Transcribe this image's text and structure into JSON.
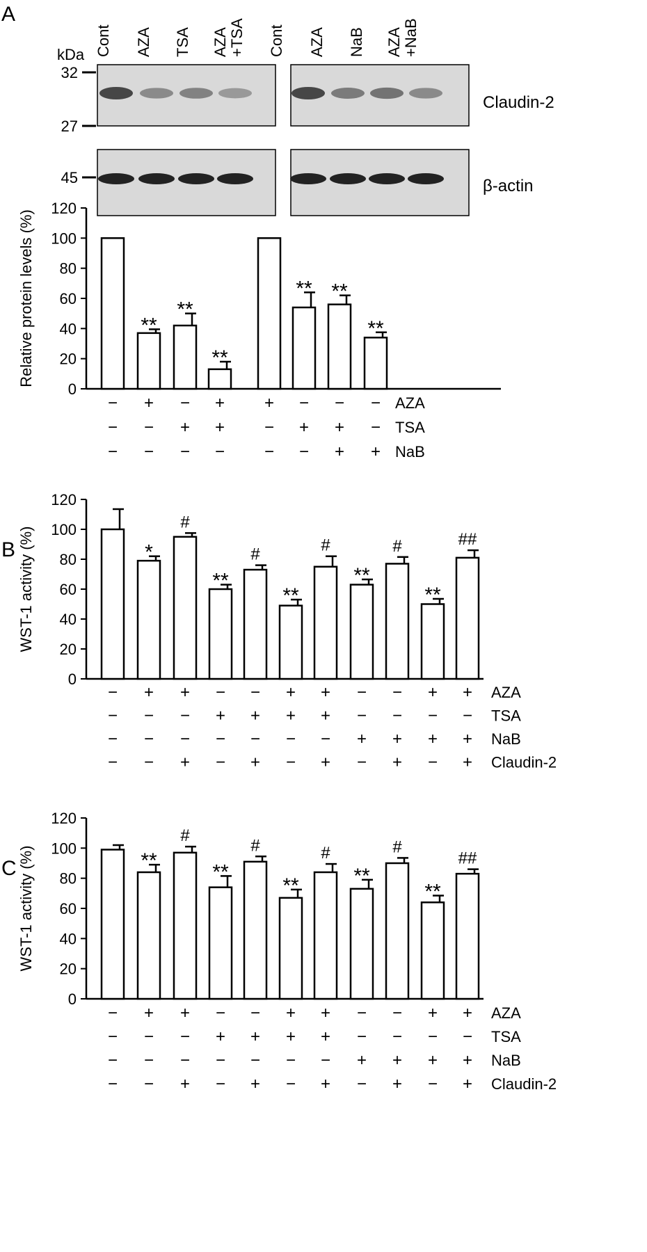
{
  "figure": {
    "panel_labels": [
      "A",
      "B",
      "C"
    ]
  },
  "blot": {
    "kda_label": "kDa",
    "lanes": [
      [
        "Cont"
      ],
      [
        "AZA"
      ],
      [
        "TSA"
      ],
      [
        "AZA",
        "+TSA"
      ],
      [
        "Cont"
      ],
      [
        "AZA"
      ],
      [
        "NaB"
      ],
      [
        "AZA",
        "+NaB"
      ]
    ],
    "markers": [
      "32",
      "27",
      "45"
    ],
    "bands": [
      "Claudin-2",
      "β-actin"
    ],
    "claudin_intensity": [
      1.0,
      0.55,
      0.6,
      0.45,
      1.0,
      0.65,
      0.7,
      0.55
    ]
  },
  "chart_data": [
    {
      "type": "bar",
      "panel": "A",
      "title": "",
      "ylabel": "Relative protein levels (%)",
      "ylim": [
        0,
        120
      ],
      "yticks": [
        "0",
        "20",
        "40",
        "60",
        "80",
        "100",
        "120"
      ],
      "values": [
        100,
        37,
        42,
        13,
        100,
        54,
        56,
        34
      ],
      "errors": [
        0,
        2.5,
        8,
        5,
        0,
        10,
        6,
        3.5
      ],
      "annotations": [
        "",
        "**",
        "**",
        "**",
        "",
        "**",
        "**",
        "**"
      ],
      "condition_rows": [
        {
          "label": "AZA",
          "signs": [
            "−",
            "+",
            "−",
            "+",
            "+",
            "−",
            "−",
            "−"
          ]
        },
        {
          "label": "TSA",
          "signs": [
            "−",
            "−",
            "+",
            "+",
            "−",
            "+",
            "+",
            "−"
          ]
        },
        {
          "label": "NaB",
          "signs": [
            "−",
            "−",
            "−",
            "−",
            "−",
            "−",
            "+",
            "+"
          ]
        }
      ]
    },
    {
      "type": "bar",
      "panel": "B",
      "title": "",
      "ylabel": "WST-1 activity  (%)",
      "ylim": [
        0,
        120
      ],
      "yticks": [
        "0",
        "20",
        "40",
        "60",
        "80",
        "100",
        "120"
      ],
      "values": [
        100,
        79,
        95,
        60,
        73,
        49,
        75,
        63,
        77,
        50,
        81
      ],
      "errors": [
        13.5,
        3,
        2.5,
        3,
        3,
        4,
        7,
        3.5,
        4.5,
        3.5,
        5
      ],
      "annotations": [
        "",
        "*",
        "#",
        "**",
        "#",
        "**",
        "#",
        "**",
        "#",
        "**",
        "##"
      ],
      "condition_rows": [
        {
          "label": "AZA",
          "signs": [
            "−",
            "+",
            "+",
            "−",
            "−",
            "+",
            "+",
            "−",
            "−",
            "+",
            "+"
          ]
        },
        {
          "label": "TSA",
          "signs": [
            "−",
            "−",
            "−",
            "+",
            "+",
            "+",
            "+",
            "−",
            "−",
            "−",
            "−"
          ]
        },
        {
          "label": "NaB",
          "signs": [
            "−",
            "−",
            "−",
            "−",
            "−",
            "−",
            "−",
            "+",
            "+",
            "+",
            "+"
          ]
        },
        {
          "label": "Claudin-2",
          "signs": [
            "−",
            "−",
            "+",
            "−",
            "+",
            "−",
            "+",
            "−",
            "+",
            "−",
            "+"
          ]
        }
      ]
    },
    {
      "type": "bar",
      "panel": "C",
      "title": "",
      "ylabel": "WST-1 activity  (%)",
      "ylim": [
        0,
        120
      ],
      "yticks": [
        "0",
        "20",
        "40",
        "60",
        "80",
        "100",
        "120"
      ],
      "values": [
        99,
        84,
        97,
        74,
        91,
        67,
        84,
        73,
        90,
        64,
        83
      ],
      "errors": [
        3,
        5,
        4,
        7.5,
        3.5,
        5.5,
        5.5,
        6,
        3.5,
        4.5,
        3
      ],
      "annotations": [
        "",
        "**",
        "#",
        "**",
        "#",
        "**",
        "#",
        "**",
        "#",
        "**",
        "##"
      ],
      "condition_rows": [
        {
          "label": "AZA",
          "signs": [
            "−",
            "+",
            "+",
            "−",
            "−",
            "+",
            "+",
            "−",
            "−",
            "+",
            "+"
          ]
        },
        {
          "label": "TSA",
          "signs": [
            "−",
            "−",
            "−",
            "+",
            "+",
            "+",
            "+",
            "−",
            "−",
            "−",
            "−"
          ]
        },
        {
          "label": "NaB",
          "signs": [
            "−",
            "−",
            "−",
            "−",
            "−",
            "−",
            "−",
            "+",
            "+",
            "+",
            "+"
          ]
        },
        {
          "label": "Claudin-2",
          "signs": [
            "−",
            "−",
            "+",
            "−",
            "+",
            "−",
            "+",
            "−",
            "+",
            "−",
            "+"
          ]
        }
      ]
    }
  ]
}
